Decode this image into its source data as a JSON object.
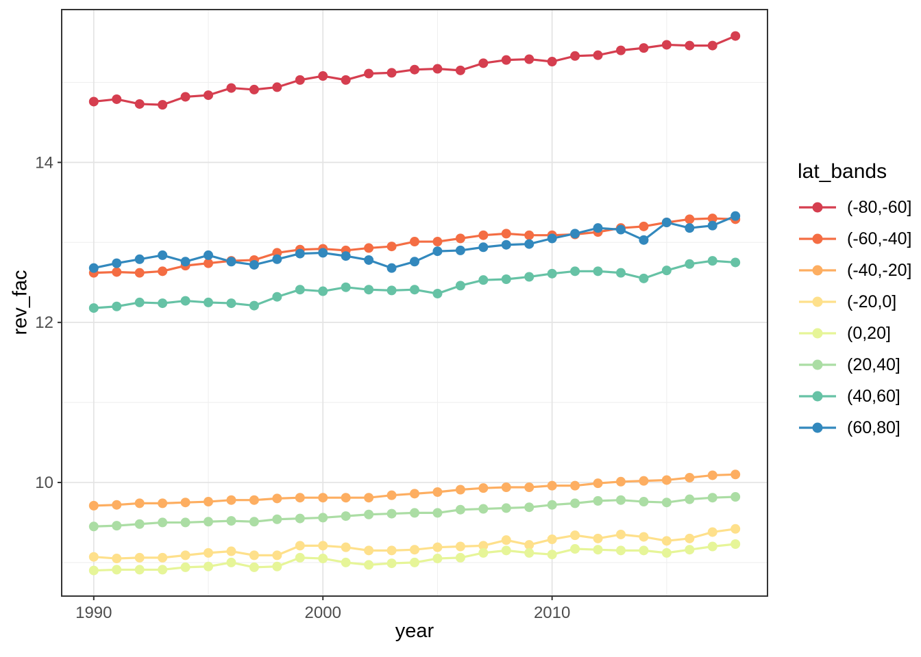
{
  "chart_data": {
    "type": "line",
    "title": "",
    "xlabel": "year",
    "ylabel": "rev_fac",
    "legend_title": "lat_bands",
    "legend_position": "right",
    "grid": "on",
    "xlim": [
      1988.6,
      2019.4
    ],
    "ylim": [
      8.58,
      15.91
    ],
    "x_ticks": [
      "1990",
      "2000",
      "2010"
    ],
    "x_tick_values": [
      1990,
      2000,
      2010
    ],
    "x_minor": [
      1995,
      2005,
      2015
    ],
    "y_ticks": [
      "10",
      "12",
      "14"
    ],
    "y_tick_values": [
      10,
      12,
      14
    ],
    "y_minor": [
      9,
      11,
      13,
      15
    ],
    "x": [
      1990,
      1991,
      1992,
      1993,
      1994,
      1995,
      1996,
      1997,
      1998,
      1999,
      2000,
      2001,
      2002,
      2003,
      2004,
      2005,
      2006,
      2007,
      2008,
      2009,
      2010,
      2011,
      2012,
      2013,
      2014,
      2015,
      2016,
      2017,
      2018
    ],
    "series": [
      {
        "name": "(-80,-60]",
        "color": "#D53E4F",
        "values": [
          14.76,
          14.79,
          14.73,
          14.72,
          14.82,
          14.84,
          14.93,
          14.91,
          14.94,
          15.03,
          15.08,
          15.03,
          15.11,
          15.12,
          15.16,
          15.17,
          15.15,
          15.24,
          15.28,
          15.29,
          15.26,
          15.33,
          15.34,
          15.4,
          15.43,
          15.47,
          15.46,
          15.46,
          15.58
        ]
      },
      {
        "name": "(-60,-40]",
        "color": "#F46D43",
        "values": [
          12.62,
          12.63,
          12.62,
          12.64,
          12.71,
          12.74,
          12.77,
          12.78,
          12.87,
          12.91,
          12.92,
          12.9,
          12.93,
          12.95,
          13.01,
          13.01,
          13.05,
          13.09,
          13.11,
          13.09,
          13.09,
          13.1,
          13.13,
          13.18,
          13.2,
          13.25,
          13.29,
          13.3,
          13.29
        ]
      },
      {
        "name": "(-40,-20]",
        "color": "#FDAE61",
        "values": [
          9.71,
          9.72,
          9.74,
          9.74,
          9.75,
          9.76,
          9.78,
          9.78,
          9.8,
          9.81,
          9.81,
          9.81,
          9.81,
          9.84,
          9.86,
          9.88,
          9.91,
          9.93,
          9.94,
          9.94,
          9.96,
          9.96,
          9.99,
          10.01,
          10.02,
          10.03,
          10.06,
          10.09,
          10.1
        ]
      },
      {
        "name": "(-20,0]",
        "color": "#FEE08B",
        "values": [
          9.07,
          9.05,
          9.06,
          9.06,
          9.09,
          9.12,
          9.14,
          9.09,
          9.09,
          9.21,
          9.21,
          9.19,
          9.15,
          9.15,
          9.16,
          9.19,
          9.2,
          9.21,
          9.28,
          9.22,
          9.29,
          9.34,
          9.3,
          9.35,
          9.32,
          9.27,
          9.3,
          9.38,
          9.42
        ]
      },
      {
        "name": "(0,20]",
        "color": "#E6F598",
        "values": [
          8.9,
          8.91,
          8.91,
          8.91,
          8.94,
          8.95,
          9.0,
          8.94,
          8.95,
          9.06,
          9.05,
          9.0,
          8.97,
          8.99,
          9.0,
          9.05,
          9.06,
          9.12,
          9.15,
          9.12,
          9.1,
          9.17,
          9.16,
          9.15,
          9.15,
          9.12,
          9.16,
          9.2,
          9.23
        ]
      },
      {
        "name": "(20,40]",
        "color": "#ABDDA4",
        "values": [
          9.45,
          9.46,
          9.48,
          9.5,
          9.5,
          9.51,
          9.52,
          9.51,
          9.54,
          9.55,
          9.56,
          9.58,
          9.6,
          9.61,
          9.62,
          9.62,
          9.66,
          9.67,
          9.68,
          9.69,
          9.72,
          9.74,
          9.77,
          9.78,
          9.76,
          9.75,
          9.79,
          9.81,
          9.82
        ]
      },
      {
        "name": "(40,60]",
        "color": "#66C2A5",
        "values": [
          12.18,
          12.2,
          12.25,
          12.24,
          12.27,
          12.25,
          12.24,
          12.21,
          12.32,
          12.41,
          12.39,
          12.44,
          12.41,
          12.4,
          12.41,
          12.36,
          12.46,
          12.53,
          12.54,
          12.57,
          12.61,
          12.64,
          12.64,
          12.62,
          12.55,
          12.65,
          12.73,
          12.77,
          12.75
        ]
      },
      {
        "name": "(60,80]",
        "color": "#3288BD",
        "values": [
          12.68,
          12.74,
          12.79,
          12.84,
          12.76,
          12.84,
          12.76,
          12.72,
          12.79,
          12.86,
          12.87,
          12.83,
          12.78,
          12.68,
          12.76,
          12.89,
          12.9,
          12.94,
          12.97,
          12.98,
          13.05,
          13.11,
          13.18,
          13.16,
          13.03,
          13.25,
          13.18,
          13.21,
          13.33
        ]
      }
    ]
  },
  "style": {
    "background": "#FFFFFF",
    "panel_fill": "#FFFFFF",
    "panel_border": "#333333",
    "grid_major": "#E4E4E4",
    "grid_minor": "#EFEFEF",
    "tick_mark": "#333333",
    "tick_label": "#4D4D4D",
    "axis_title": "#000000",
    "point_radius": 7,
    "line_width": 3.2
  }
}
